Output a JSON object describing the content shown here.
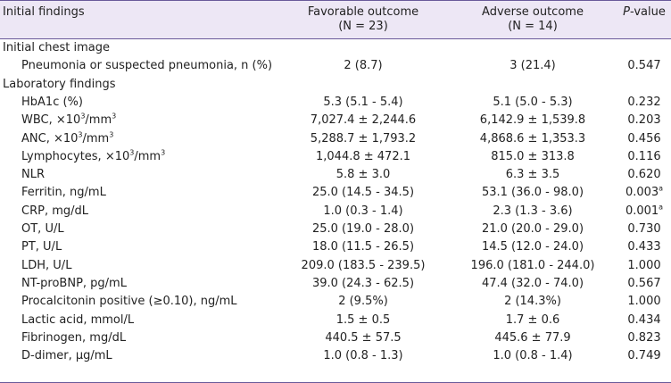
{
  "header": {
    "col_label": "Initial findings",
    "col_fav_line1": "Favorable outcome",
    "col_fav_line2": "(N = 23)",
    "col_adv_line1": "Adverse outcome",
    "col_adv_line2": "(N = 14)",
    "col_p_italic": "P",
    "col_p_rest": "-value"
  },
  "sections": [
    {
      "title": "Initial chest image",
      "rows": [
        {
          "label": "Pneumonia or suspected pneumonia, n (%)",
          "fav": "2 (8.7)",
          "adv": "3 (21.4)",
          "p": "0.547",
          "p_sup": ""
        }
      ]
    },
    {
      "title": "Laboratory findings",
      "rows": [
        {
          "label": "HbA1c (%)",
          "fav": "5.3 (5.1 - 5.4)",
          "adv": "5.1 (5.0 - 5.3)",
          "p": "0.232",
          "p_sup": ""
        },
        {
          "label": "WBC, ×10",
          "label_sup": "3",
          "label_tail": "/mm",
          "label_sup2": "3",
          "fav": "7,027.4 ± 2,244.6",
          "adv": "6,142.9 ± 1,539.8",
          "p": "0.203",
          "p_sup": ""
        },
        {
          "label": "ANC, ×10",
          "label_sup": "3",
          "label_tail": "/mm",
          "label_sup2": "3",
          "fav": "5,288.7 ± 1,793.2",
          "adv": "4,868.6 ± 1,353.3",
          "p": "0.456",
          "p_sup": ""
        },
        {
          "label": "Lymphocytes, ×10",
          "label_sup": "3",
          "label_tail": "/mm",
          "label_sup2": "3",
          "fav": "1,044.8 ± 472.1",
          "adv": "815.0 ± 313.8",
          "p": "0.116",
          "p_sup": ""
        },
        {
          "label": "NLR",
          "fav": "5.8 ± 3.0",
          "adv": "6.3 ± 3.5",
          "p": "0.620",
          "p_sup": ""
        },
        {
          "label": "Ferritin, ng/mL",
          "fav": "25.0 (14.5 - 34.5)",
          "adv": "53.1 (36.0 - 98.0)",
          "p": "0.003",
          "p_sup": "a"
        },
        {
          "label": "CRP, mg/dL",
          "fav": "1.0 (0.3 - 1.4)",
          "adv": "2.3 (1.3 - 3.6)",
          "p": "0.001",
          "p_sup": "a"
        },
        {
          "label": "OT, U/L",
          "fav": "25.0 (19.0 - 28.0)",
          "adv": "21.0 (20.0 - 29.0)",
          "p": "0.730",
          "p_sup": ""
        },
        {
          "label": "PT, U/L",
          "fav": "18.0 (11.5 - 26.5)",
          "adv": "14.5 (12.0 - 24.0)",
          "p": "0.433",
          "p_sup": ""
        },
        {
          "label": "LDH, U/L",
          "fav": "209.0 (183.5 - 239.5)",
          "adv": "196.0 (181.0 - 244.0)",
          "p": "1.000",
          "p_sup": ""
        },
        {
          "label": "NT-proBNP, pg/mL",
          "fav": "39.0 (24.3 - 62.5)",
          "adv": "47.4 (32.0 - 74.0)",
          "p": "0.567",
          "p_sup": ""
        },
        {
          "label": "Procalcitonin positive (≥0.10), ng/mL",
          "fav": "2 (9.5%)",
          "adv": "2 (14.3%)",
          "p": "1.000",
          "p_sup": ""
        },
        {
          "label": "Lactic acid, mmol/L",
          "fav": "1.5 ± 0.5",
          "adv": "1.7 ± 0.6",
          "p": "0.434",
          "p_sup": ""
        },
        {
          "label": "Fibrinogen, mg/dL",
          "fav": "440.5 ± 57.5",
          "adv": "445.6 ± 77.9",
          "p": "0.823",
          "p_sup": ""
        },
        {
          "label": "D-dimer, µg/mL",
          "fav": "1.0 (0.8 - 1.3)",
          "adv": "1.0 (0.8 - 1.4)",
          "p": "0.749",
          "p_sup": ""
        }
      ]
    }
  ]
}
